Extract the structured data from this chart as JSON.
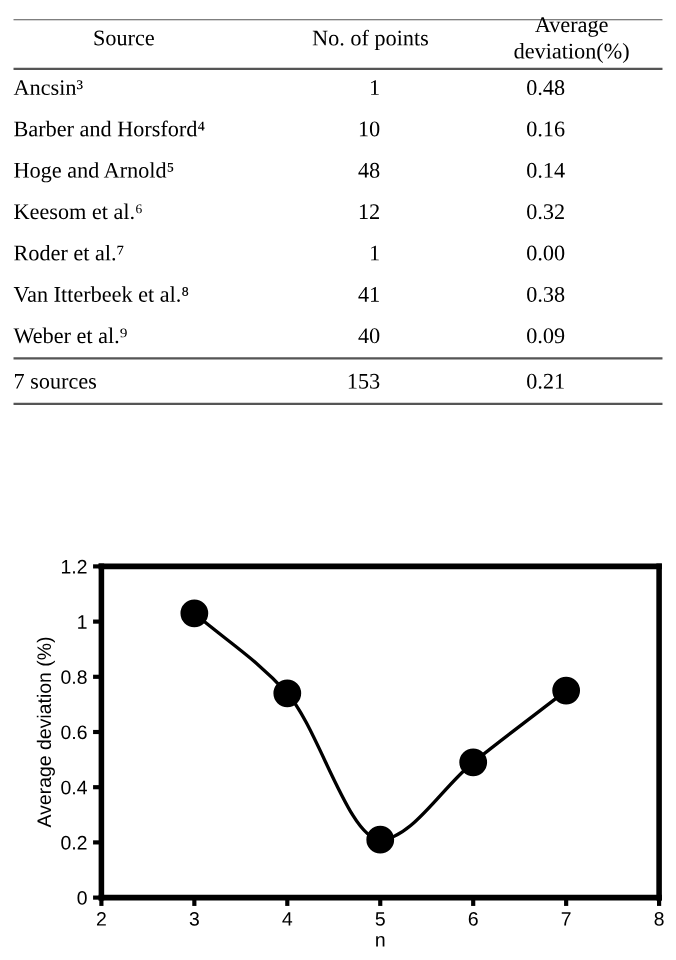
{
  "chart_data": [
    {
      "type": "other",
      "annotations": [
        "Source",
        "No. of points",
        "Average deviation(%)",
        "Ancsin³",
        "1",
        "0.48",
        "Barber and Horsford⁴",
        "10",
        "0.16",
        "Hoge and Arnold⁵",
        "48",
        "0.14",
        "Keesom et al.⁶",
        "12",
        "0.32",
        "Roder et al.⁷",
        "1",
        "0.00",
        "Van Itterbeek et al.⁸",
        "41",
        "0.38",
        "Weber et al.⁹",
        "40",
        "0.09",
        "7 sources",
        "153",
        "0.21"
      ]
    },
    {
      "type": "line",
      "xlabel": "n",
      "ylabel": "Average deviation (%)",
      "x": [
        3,
        4,
        5,
        6,
        7
      ],
      "series": [
        {
          "color": "#000000",
          "values": [
            1.03,
            0.74,
            0.21,
            0.49,
            0.75
          ]
        }
      ],
      "marker": "circle",
      "line_style": "solid",
      "xlim": [
        2,
        8
      ],
      "xticks": [
        2,
        3,
        4,
        5,
        6,
        7,
        8
      ],
      "ylim": [
        0,
        1.2
      ],
      "yticks": [
        0,
        0.2,
        0.4,
        0.6,
        0.8,
        1,
        1.2
      ],
      "grid": false,
      "legend": false
    }
  ]
}
